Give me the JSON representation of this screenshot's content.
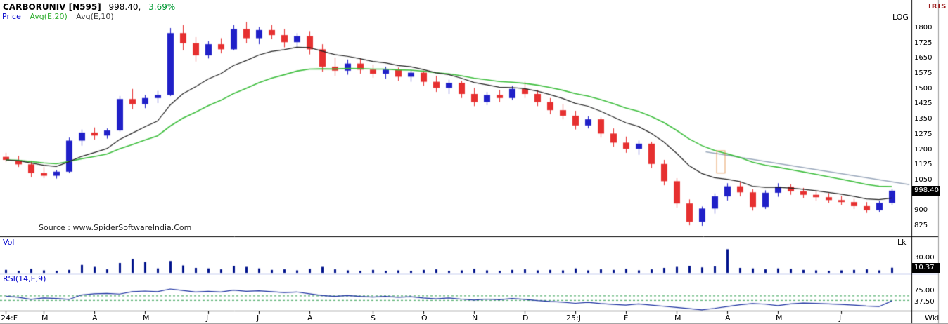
{
  "header": {
    "symbol": "CARBORUNIV [N595]",
    "last_price": "998.40,",
    "change_pct": "3.69%",
    "legend": {
      "price_label": "Price",
      "avg1_label": "Avg(E,20)",
      "avg2_label": "Avg(E,10)"
    }
  },
  "scale_label": "LOG",
  "brand": "IRIS",
  "periodicity": "Wkl",
  "source": "Source : www.SpiderSoftwareIndia.Com",
  "panels": {
    "volume": {
      "label": "Vol",
      "unit": "Lk",
      "axis_tick": "30.00",
      "current": "10.37"
    },
    "rsi": {
      "label": "RSI(14,E,9)",
      "axis_ticks": [
        "75.00",
        "37.50"
      ]
    }
  },
  "price_axis": {
    "ticks": [
      1800,
      1725,
      1650,
      1575,
      1500,
      1425,
      1350,
      1275,
      1200,
      1125,
      1050,
      900,
      825
    ],
    "current_box": "998.40"
  },
  "colors": {
    "up_candle": "#2020c8",
    "down_candle": "#e63030",
    "ema20": "#3fbf3f",
    "ema10": "#222222",
    "volume_bar": "#00128b",
    "rsi_line": "#1a2fa0",
    "rsi_guide": "#2e9e4f",
    "trendline": "#9aa8bc",
    "annotation": "#e0883c",
    "positive": "#009933",
    "label_blue": "#0000cc",
    "separator_blue": "#4055c8",
    "box_bg": "#000000",
    "box_fg": "#ffffff"
  },
  "chart_data": {
    "type": "candlestick",
    "periodicity": "weekly",
    "title": "CARBORUNIV [N595]",
    "last_price": 998.4,
    "change_pct": 3.69,
    "scale": "LOG",
    "ohlc_format": [
      "open",
      "high",
      "low",
      "close"
    ],
    "price_axis_range": [
      825,
      1830
    ],
    "overlays": [
      "EMA(20) green",
      "EMA(10) black"
    ],
    "candles": [
      [
        1165,
        1185,
        1140,
        1150
      ],
      [
        1150,
        1170,
        1115,
        1128
      ],
      [
        1128,
        1145,
        1065,
        1085
      ],
      [
        1085,
        1115,
        1060,
        1072
      ],
      [
        1072,
        1100,
        1058,
        1092
      ],
      [
        1092,
        1260,
        1085,
        1245
      ],
      [
        1245,
        1300,
        1220,
        1285
      ],
      [
        1285,
        1310,
        1250,
        1270
      ],
      [
        1270,
        1305,
        1255,
        1295
      ],
      [
        1295,
        1465,
        1290,
        1450
      ],
      [
        1450,
        1500,
        1400,
        1425
      ],
      [
        1425,
        1470,
        1405,
        1455
      ],
      [
        1455,
        1490,
        1430,
        1470
      ],
      [
        1470,
        1800,
        1465,
        1775
      ],
      [
        1775,
        1815,
        1690,
        1725
      ],
      [
        1725,
        1755,
        1635,
        1665
      ],
      [
        1665,
        1735,
        1650,
        1720
      ],
      [
        1720,
        1750,
        1675,
        1695
      ],
      [
        1695,
        1815,
        1690,
        1795
      ],
      [
        1795,
        1830,
        1725,
        1750
      ],
      [
        1750,
        1805,
        1720,
        1790
      ],
      [
        1790,
        1815,
        1745,
        1765
      ],
      [
        1765,
        1795,
        1705,
        1730
      ],
      [
        1730,
        1775,
        1700,
        1760
      ],
      [
        1760,
        1785,
        1670,
        1695
      ],
      [
        1695,
        1720,
        1585,
        1610
      ],
      [
        1610,
        1655,
        1565,
        1590
      ],
      [
        1590,
        1645,
        1570,
        1625
      ],
      [
        1625,
        1650,
        1575,
        1595
      ],
      [
        1595,
        1620,
        1555,
        1575
      ],
      [
        1575,
        1610,
        1550,
        1595
      ],
      [
        1595,
        1605,
        1540,
        1560
      ],
      [
        1560,
        1595,
        1535,
        1580
      ],
      [
        1580,
        1590,
        1515,
        1535
      ],
      [
        1535,
        1565,
        1485,
        1505
      ],
      [
        1505,
        1545,
        1475,
        1530
      ],
      [
        1530,
        1540,
        1455,
        1475
      ],
      [
        1475,
        1505,
        1415,
        1435
      ],
      [
        1435,
        1485,
        1420,
        1470
      ],
      [
        1470,
        1495,
        1435,
        1455
      ],
      [
        1455,
        1515,
        1445,
        1500
      ],
      [
        1500,
        1535,
        1455,
        1475
      ],
      [
        1475,
        1495,
        1415,
        1435
      ],
      [
        1435,
        1455,
        1375,
        1395
      ],
      [
        1395,
        1425,
        1350,
        1368
      ],
      [
        1368,
        1392,
        1300,
        1320
      ],
      [
        1320,
        1365,
        1305,
        1350
      ],
      [
        1350,
        1360,
        1260,
        1280
      ],
      [
        1280,
        1305,
        1215,
        1235
      ],
      [
        1235,
        1265,
        1185,
        1205
      ],
      [
        1205,
        1245,
        1175,
        1230
      ],
      [
        1230,
        1240,
        1110,
        1130
      ],
      [
        1130,
        1150,
        1025,
        1045
      ],
      [
        1045,
        1060,
        915,
        935
      ],
      [
        935,
        955,
        828,
        845
      ],
      [
        845,
        920,
        825,
        910
      ],
      [
        910,
        985,
        885,
        970
      ],
      [
        970,
        1035,
        950,
        1020
      ],
      [
        1020,
        1040,
        970,
        990
      ],
      [
        990,
        1005,
        900,
        918
      ],
      [
        918,
        1000,
        908,
        988
      ],
      [
        988,
        1035,
        968,
        1018
      ],
      [
        1018,
        1030,
        978,
        995
      ],
      [
        995,
        1012,
        962,
        978
      ],
      [
        978,
        998,
        948,
        966
      ],
      [
        966,
        986,
        938,
        952
      ],
      [
        952,
        972,
        928,
        942
      ],
      [
        942,
        958,
        908,
        922
      ],
      [
        922,
        942,
        888,
        902
      ],
      [
        902,
        948,
        892,
        938
      ],
      [
        938,
        1008,
        928,
        998.4
      ]
    ],
    "volumes_lakh": [
      6,
      4,
      8,
      5,
      4,
      6,
      16,
      12,
      7,
      20,
      28,
      22,
      9,
      24,
      15,
      10,
      9,
      7,
      14,
      12,
      9,
      6,
      7,
      5,
      8,
      12,
      7,
      5,
      4,
      6,
      4,
      5,
      4,
      6,
      7,
      4,
      5,
      8,
      5,
      4,
      6,
      7,
      5,
      6,
      5,
      9,
      5,
      7,
      6,
      8,
      5,
      7,
      10,
      12,
      14,
      11,
      13,
      48,
      10,
      9,
      7,
      9,
      8,
      6,
      5,
      4,
      5,
      6,
      7,
      5,
      10.37
    ],
    "rsi_14": [
      58,
      54,
      47,
      52,
      50,
      47,
      62,
      66,
      67,
      65,
      73,
      75,
      73,
      82,
      77,
      72,
      74,
      72,
      78,
      74,
      76,
      73,
      70,
      72,
      66,
      60,
      57,
      60,
      57,
      55,
      57,
      54,
      56,
      52,
      49,
      52,
      48,
      45,
      48,
      46,
      50,
      47,
      43,
      40,
      38,
      34,
      37,
      33,
      30,
      28,
      32,
      28,
      24,
      20,
      16,
      12,
      17,
      23,
      29,
      33,
      31,
      26,
      32,
      35,
      34,
      32,
      30,
      28,
      25,
      23,
      42
    ],
    "rsi_guides": [
      60,
      45
    ],
    "x_labels": [
      {
        "text": "24:F",
        "i": 0
      },
      {
        "text": "M",
        "i": 3
      },
      {
        "text": "A",
        "i": 7
      },
      {
        "text": "M",
        "i": 11
      },
      {
        "text": "J",
        "i": 16
      },
      {
        "text": "J",
        "i": 20
      },
      {
        "text": "A",
        "i": 24
      },
      {
        "text": "S",
        "i": 29
      },
      {
        "text": "O",
        "i": 33
      },
      {
        "text": "N",
        "i": 37
      },
      {
        "text": "D",
        "i": 41
      },
      {
        "text": "25:J",
        "i": 45
      },
      {
        "text": "F",
        "i": 49
      },
      {
        "text": "M",
        "i": 53
      },
      {
        "text": "A",
        "i": 57
      },
      {
        "text": "M",
        "i": 61
      },
      {
        "text": "J",
        "i": 66
      }
    ],
    "trendline": {
      "from_index": 55.3,
      "from_price": 1190,
      "to_index": 71.4,
      "to_price": 1028
    },
    "annotation_box": {
      "index": 56.5,
      "price_top": 1195,
      "price_bottom": 1085
    }
  }
}
